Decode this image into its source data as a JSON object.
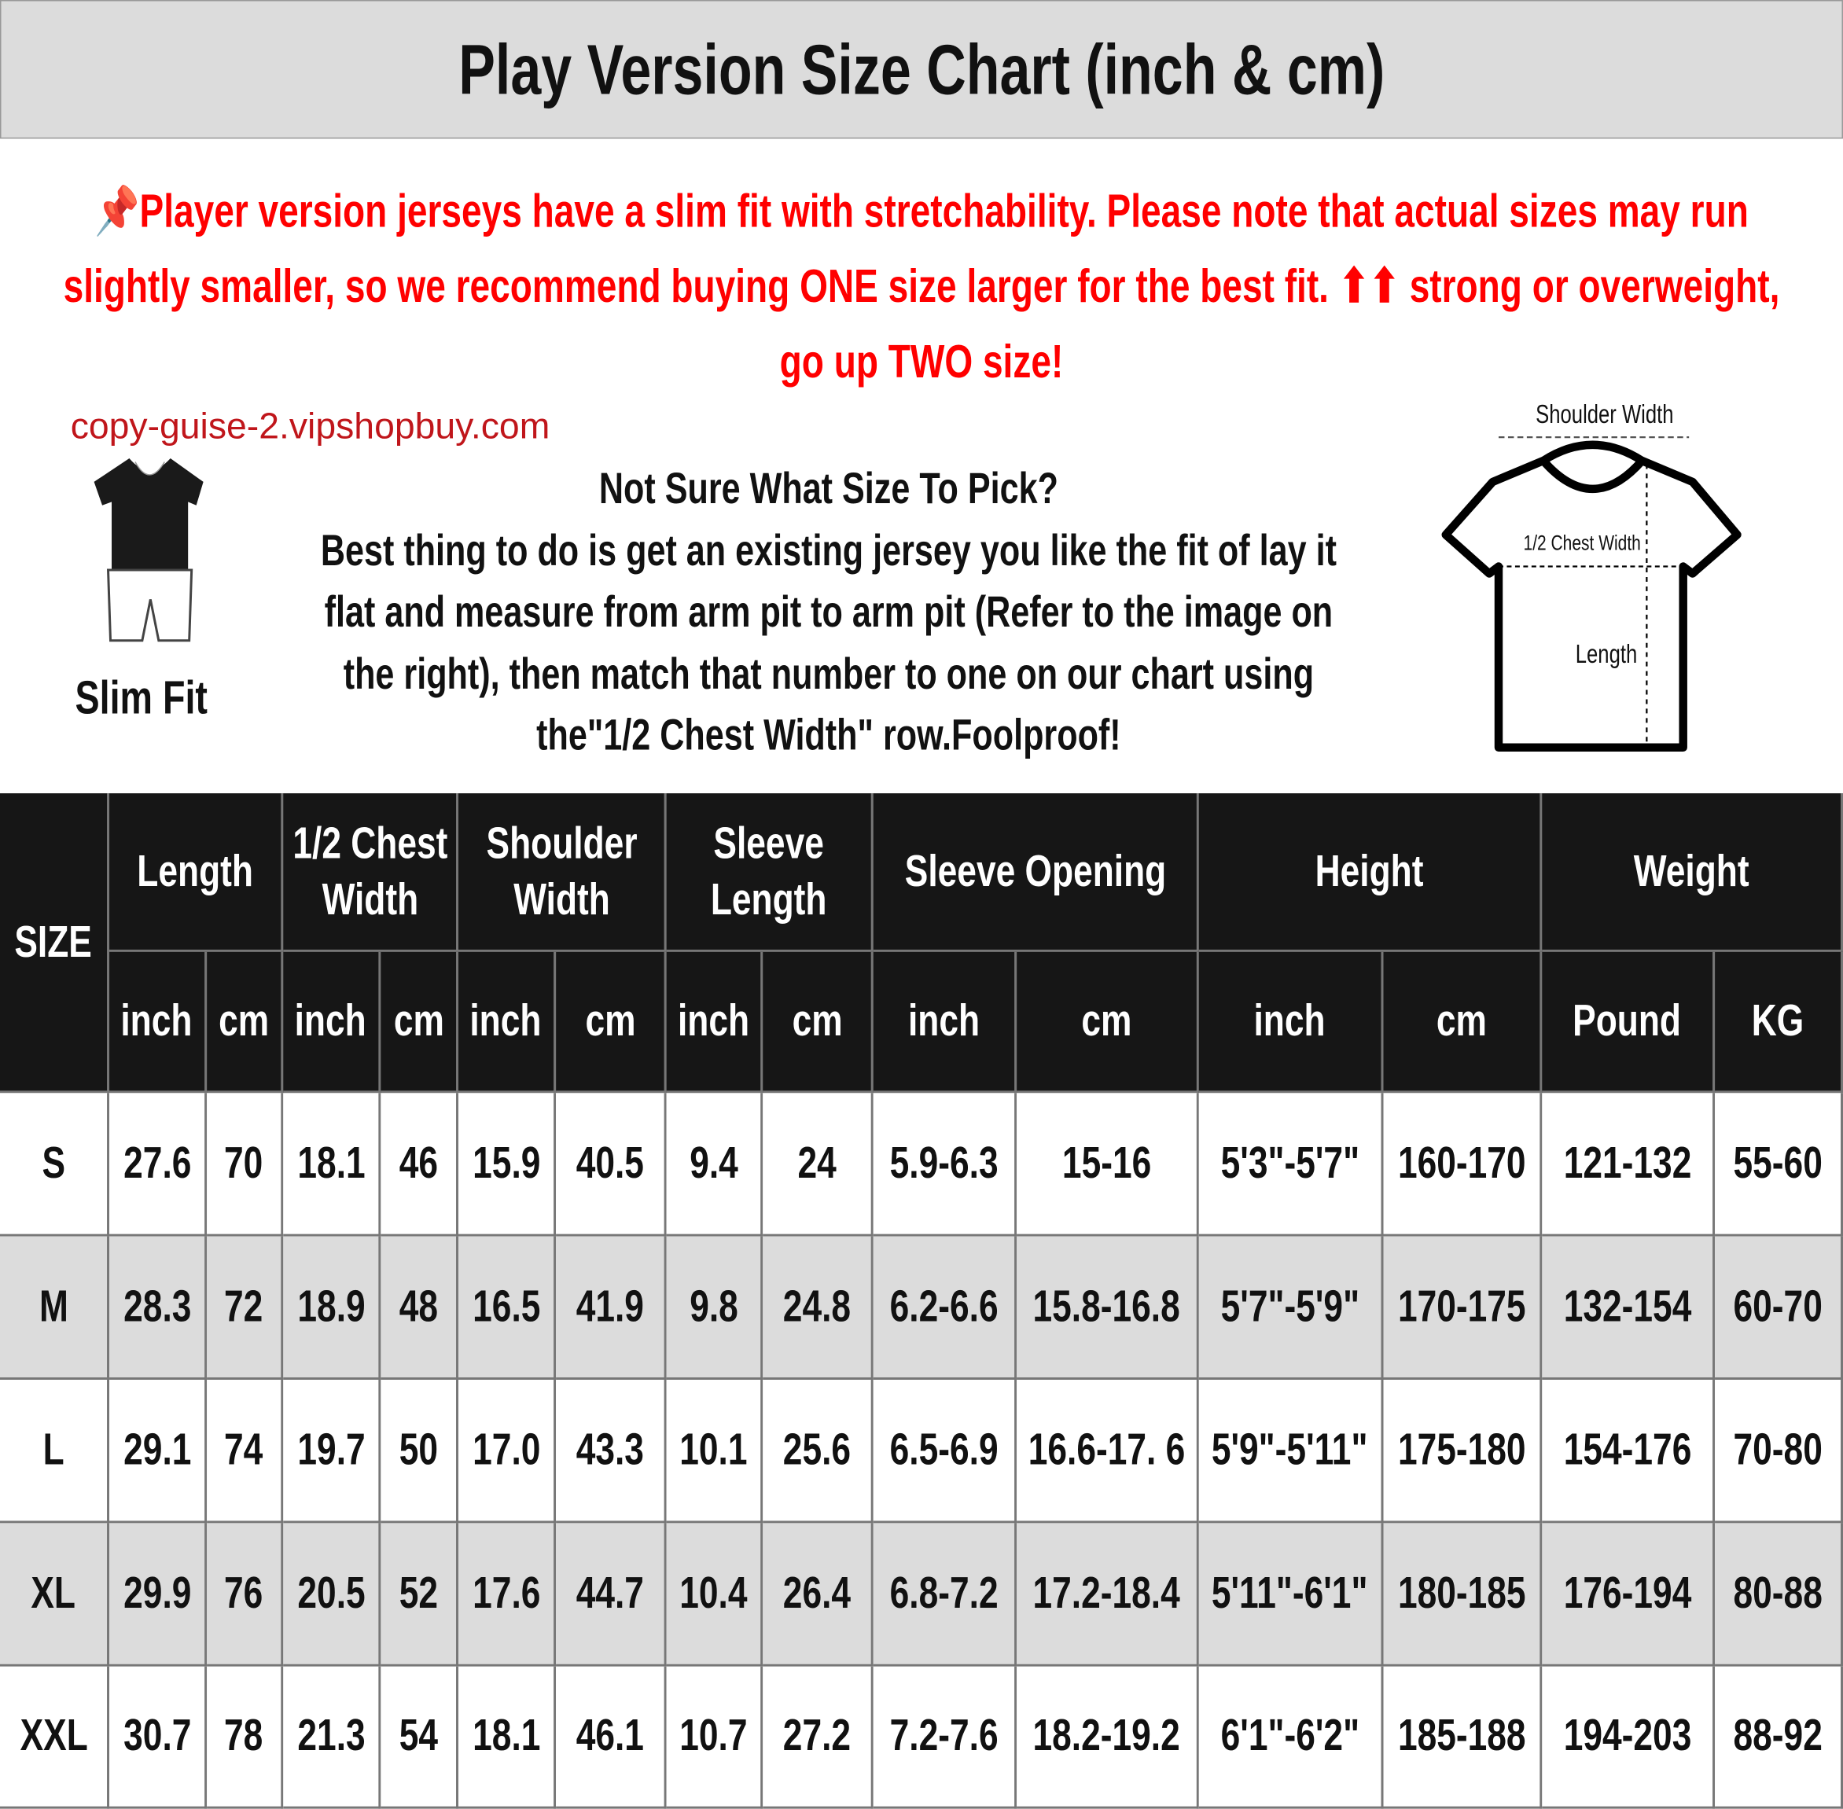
{
  "title": "Play Version Size Chart (inch & cm)",
  "notice": {
    "icon": "pushpin-icon",
    "lines": [
      "Player version jerseys have a slim fit with stretchability. Please note that actual sizes may run",
      "slightly smaller, so we recommend buying ONE size larger for the best fit. ⬆⬆ strong or overweight,",
      "go up TWO size!"
    ],
    "color": "#ff0000"
  },
  "fit_label": "Slim Fit",
  "info": {
    "question": "Not Sure What Size To Pick?",
    "lines": [
      "Best thing to do is get an existing jersey you like the fit of lay it",
      "flat and measure from arm pit to arm pit (Refer to the image on",
      "the right), then match that number to one on our chart using",
      "the\"1/2 Chest Width\" row.Foolproof!"
    ]
  },
  "diagram": {
    "shoulder": "Shoulder Width",
    "chest": "1/2 Chest Width",
    "length": "Length"
  },
  "watermark": "copy-guise-2.vipshopbuy.com",
  "table": {
    "size_header": "SIZE",
    "groups": [
      "Length",
      "1/2 Chest Width",
      "Shoulder Width",
      "Sleeve Length",
      "Sleeve Opening",
      "Height",
      "Weight"
    ],
    "units": [
      "inch",
      "cm",
      "inch",
      "cm",
      "inch",
      "cm",
      "inch",
      "cm",
      "inch",
      "cm",
      "inch",
      "cm",
      "Pound",
      "KG"
    ],
    "rows": [
      [
        "S",
        "27.6",
        "70",
        "18.1",
        "46",
        "15.9",
        "40.5",
        "9.4",
        "24",
        "5.9-6.3",
        "15-16",
        "5'3\"-5'7\"",
        "160-170",
        "121-132",
        "55-60"
      ],
      [
        "M",
        "28.3",
        "72",
        "18.9",
        "48",
        "16.5",
        "41.9",
        "9.8",
        "24.8",
        "6.2-6.6",
        "15.8-16.8",
        "5'7\"-5'9\"",
        "170-175",
        "132-154",
        "60-70"
      ],
      [
        "L",
        "29.1",
        "74",
        "19.7",
        "50",
        "17.0",
        "43.3",
        "10.1",
        "25.6",
        "6.5-6.9",
        "16.6-17. 6",
        "5'9\"-5'11\"",
        "175-180",
        "154-176",
        "70-80"
      ],
      [
        "XL",
        "29.9",
        "76",
        "20.5",
        "52",
        "17.6",
        "44.7",
        "10.4",
        "26.4",
        "6.8-7.2",
        "17.2-18.4",
        "5'11\"-6'1\"",
        "180-185",
        "176-194",
        "80-88"
      ],
      [
        "XXL",
        "30.7",
        "78",
        "21.3",
        "54",
        "18.1",
        "46.1",
        "10.7",
        "27.2",
        "7.2-7.6",
        "18.2-19.2",
        "6'1\"-6'2\"",
        "185-188",
        "194-203",
        "88-92"
      ]
    ]
  }
}
